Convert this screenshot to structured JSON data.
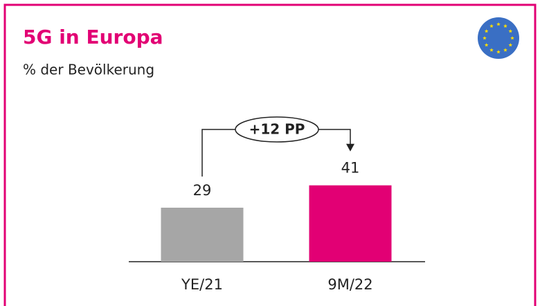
{
  "chart_data": {
    "type": "bar",
    "title": "5G in Europa",
    "subtitle": "% der Bevölkerung",
    "categories": [
      "YE/21",
      "9M/22"
    ],
    "values": [
      29,
      41
    ],
    "colors": [
      "#a6a6a6",
      "#e20074"
    ],
    "annotation": "+12 PP"
  }
}
